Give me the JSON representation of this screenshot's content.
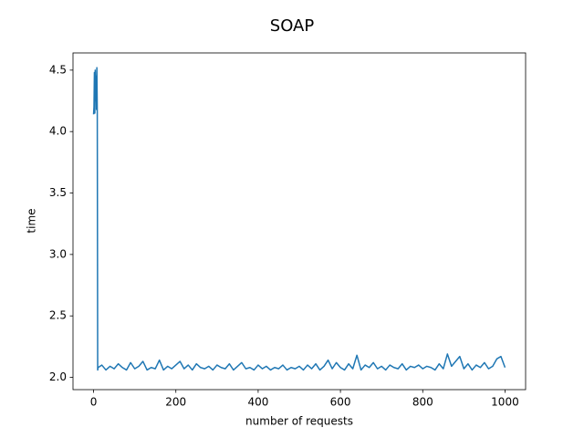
{
  "chart_data": {
    "type": "line",
    "title": "SOAP",
    "xlabel": "number of requests",
    "ylabel": "time",
    "x": [
      0,
      1,
      2,
      3,
      4,
      5,
      6,
      7,
      8,
      9,
      10,
      11,
      20,
      30,
      40,
      50,
      60,
      70,
      80,
      90,
      100,
      110,
      120,
      130,
      140,
      150,
      160,
      170,
      180,
      190,
      200,
      210,
      220,
      230,
      240,
      250,
      260,
      270,
      280,
      290,
      300,
      310,
      320,
      330,
      340,
      350,
      360,
      370,
      380,
      390,
      400,
      410,
      420,
      430,
      440,
      450,
      460,
      470,
      480,
      490,
      500,
      510,
      520,
      530,
      540,
      550,
      560,
      570,
      580,
      590,
      600,
      610,
      620,
      630,
      640,
      650,
      660,
      670,
      680,
      690,
      700,
      710,
      720,
      730,
      740,
      750,
      760,
      770,
      780,
      790,
      800,
      810,
      820,
      830,
      840,
      850,
      860,
      870,
      880,
      890,
      900,
      910,
      920,
      930,
      940,
      950,
      960,
      970,
      980,
      990,
      1000
    ],
    "series": [
      {
        "name": "time",
        "color": "#1f77b4",
        "values": [
          4.14,
          4.2,
          4.48,
          4.15,
          4.5,
          4.25,
          4.45,
          4.18,
          4.52,
          4.16,
          2.06,
          2.08,
          2.1,
          2.06,
          2.09,
          2.07,
          2.11,
          2.08,
          2.06,
          2.12,
          2.07,
          2.09,
          2.13,
          2.06,
          2.08,
          2.07,
          2.14,
          2.06,
          2.09,
          2.07,
          2.1,
          2.13,
          2.07,
          2.1,
          2.06,
          2.11,
          2.08,
          2.07,
          2.09,
          2.06,
          2.1,
          2.08,
          2.07,
          2.11,
          2.06,
          2.09,
          2.12,
          2.07,
          2.08,
          2.06,
          2.1,
          2.07,
          2.09,
          2.06,
          2.08,
          2.07,
          2.1,
          2.06,
          2.08,
          2.07,
          2.09,
          2.06,
          2.1,
          2.07,
          2.11,
          2.06,
          2.09,
          2.14,
          2.07,
          2.12,
          2.08,
          2.06,
          2.11,
          2.07,
          2.18,
          2.06,
          2.1,
          2.08,
          2.12,
          2.07,
          2.09,
          2.06,
          2.1,
          2.08,
          2.07,
          2.11,
          2.06,
          2.09,
          2.08,
          2.1,
          2.07,
          2.09,
          2.08,
          2.06,
          2.11,
          2.07,
          2.19,
          2.09,
          2.13,
          2.17,
          2.07,
          2.11,
          2.06,
          2.1,
          2.08,
          2.12,
          2.07,
          2.09,
          2.15,
          2.17,
          2.08
        ]
      }
    ],
    "xlim": [
      -50,
      1050
    ],
    "xticks": [
      0,
      200,
      400,
      600,
      800,
      1000
    ],
    "ylim": [
      1.9,
      4.64
    ],
    "yticks": [
      {
        "value": 2,
        "label": "2.0"
      },
      2.5,
      {
        "value": 3,
        "label": "3.0"
      },
      3.5,
      {
        "value": 4,
        "label": "4.0"
      },
      4.5
    ],
    "grid": false
  }
}
